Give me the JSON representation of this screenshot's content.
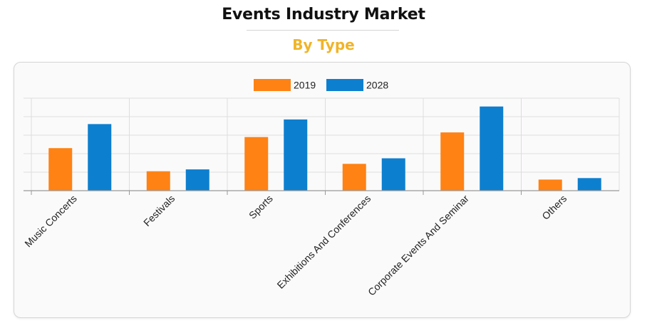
{
  "header": {
    "title": "Events Industry Market",
    "subtitle": "By Type"
  },
  "colors": {
    "title": "#111111",
    "subtitle": "#f0b429",
    "series_2019": "#ff8214",
    "series_2028": "#0d7fcf",
    "grid": "#dddddd",
    "axis": "#999999"
  },
  "chart_data": {
    "type": "bar",
    "title": "Events Industry Market",
    "subtitle": "By Type",
    "categories": [
      "Music Concerts",
      "Festivals",
      "Sports",
      "Exhibitions And Conferences",
      "Corporate Events And Seminar",
      "Others"
    ],
    "series": [
      {
        "name": "2019",
        "color": "#ff8214",
        "values": [
          2.3,
          1.05,
          2.9,
          1.45,
          3.15,
          0.6
        ]
      },
      {
        "name": "2028",
        "color": "#0d7fcf",
        "values": [
          3.6,
          1.15,
          3.85,
          1.75,
          4.55,
          0.68
        ]
      }
    ],
    "ylim": [
      0,
      5
    ],
    "y_tick_labels_visible": false,
    "grid": true,
    "legend_position": "top-center",
    "xlabel": "",
    "ylabel": ""
  }
}
